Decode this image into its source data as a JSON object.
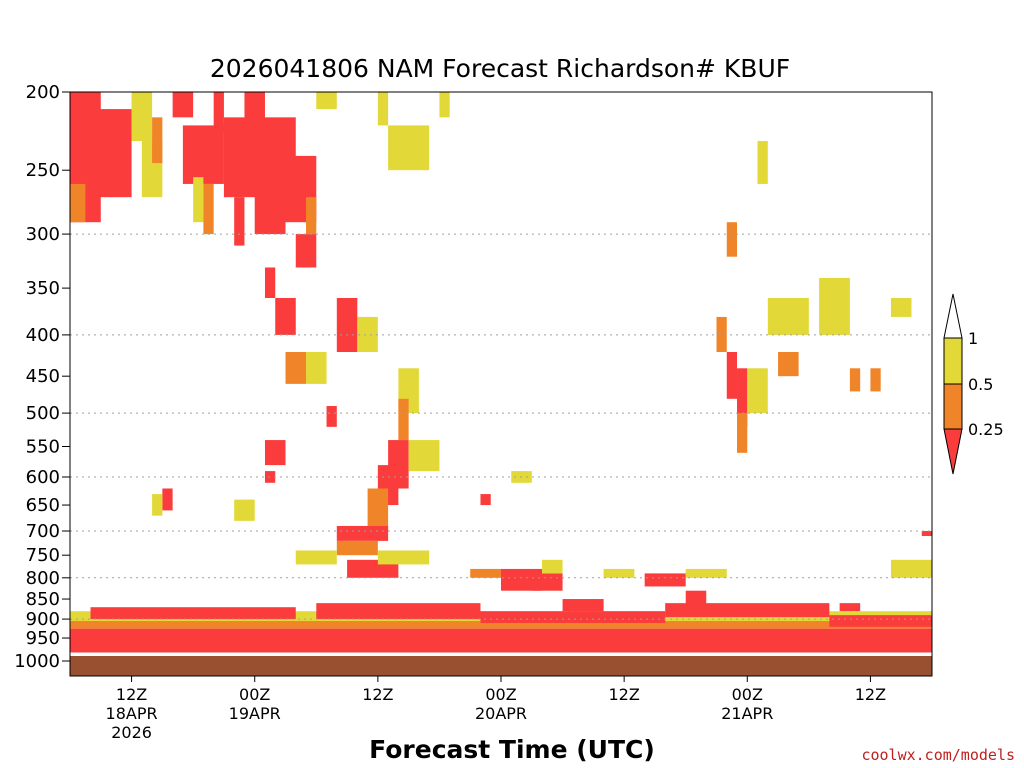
{
  "chart_data": {
    "type": "heatmap",
    "title": "2026041806 NAM Forecast Richardson# KBUF",
    "xlabel": "Forecast Time (UTC)",
    "ylabel": "",
    "credit": "coolwx.com/models",
    "y_axis": {
      "scale": "pressure-log",
      "range": [
        1000,
        200
      ],
      "ticks": [
        200,
        250,
        300,
        350,
        400,
        450,
        500,
        550,
        600,
        650,
        700,
        750,
        800,
        850,
        900,
        950,
        1000
      ],
      "gridlines": [
        300,
        400,
        500,
        600,
        700,
        800,
        900
      ]
    },
    "x_axis": {
      "range_hours": [
        0,
        84
      ],
      "ticks": [
        {
          "hour": 6,
          "lines": [
            "12Z",
            "18APR",
            "2026"
          ]
        },
        {
          "hour": 18,
          "lines": [
            "00Z",
            "19APR"
          ]
        },
        {
          "hour": 30,
          "lines": [
            "12Z"
          ]
        },
        {
          "hour": 42,
          "lines": [
            "00Z",
            "20APR"
          ]
        },
        {
          "hour": 54,
          "lines": [
            "12Z"
          ]
        },
        {
          "hour": 66,
          "lines": [
            "00Z",
            "21APR"
          ]
        },
        {
          "hour": 78,
          "lines": [
            "12Z"
          ]
        }
      ]
    },
    "legend": {
      "placement": "right",
      "labels": [
        "1",
        "0.5",
        "0.25"
      ],
      "bins": [
        {
          "range": "0.5-1",
          "color": "#e2d838"
        },
        {
          "range": "0.25-0.5",
          "color": "#f08428"
        },
        {
          "range": "<0.25",
          "color": "#fa3c3c"
        }
      ]
    },
    "colors": {
      "low": "#fa3c3c",
      "mid": "#f08428",
      "high": "#e2d838",
      "ground": "#985030",
      "grid": "#a0a0a0"
    },
    "cells": [
      {
        "t": [
          0,
          3
        ],
        "p": [
          200,
          290
        ],
        "c": "low"
      },
      {
        "t": [
          2,
          6
        ],
        "p": [
          210,
          270
        ],
        "c": "low"
      },
      {
        "t": [
          0,
          1.5
        ],
        "p": [
          260,
          290
        ],
        "c": "mid"
      },
      {
        "t": [
          6,
          8
        ],
        "p": [
          200,
          230
        ],
        "c": "high"
      },
      {
        "t": [
          7,
          9
        ],
        "p": [
          230,
          270
        ],
        "c": "high"
      },
      {
        "t": [
          8,
          9
        ],
        "p": [
          215,
          245
        ],
        "c": "mid"
      },
      {
        "t": [
          10,
          12
        ],
        "p": [
          200,
          215
        ],
        "c": "low"
      },
      {
        "t": [
          11,
          15
        ],
        "p": [
          220,
          260
        ],
        "c": "low"
      },
      {
        "t": [
          12,
          13
        ],
        "p": [
          255,
          290
        ],
        "c": "high"
      },
      {
        "t": [
          13,
          14
        ],
        "p": [
          260,
          300
        ],
        "c": "mid"
      },
      {
        "t": [
          14,
          15
        ],
        "p": [
          200,
          225
        ],
        "c": "low"
      },
      {
        "t": [
          15,
          22
        ],
        "p": [
          215,
          270
        ],
        "c": "low"
      },
      {
        "t": [
          16,
          17
        ],
        "p": [
          270,
          310
        ],
        "c": "low"
      },
      {
        "t": [
          17,
          19
        ],
        "p": [
          200,
          235
        ],
        "c": "low"
      },
      {
        "t": [
          18,
          21
        ],
        "p": [
          230,
          300
        ],
        "c": "low"
      },
      {
        "t": [
          21,
          24
        ],
        "p": [
          240,
          290
        ],
        "c": "low"
      },
      {
        "t": [
          22,
          24
        ],
        "p": [
          300,
          330
        ],
        "c": "low"
      },
      {
        "t": [
          19,
          20
        ],
        "p": [
          330,
          360
        ],
        "c": "low"
      },
      {
        "t": [
          20,
          22
        ],
        "p": [
          360,
          400
        ],
        "c": "low"
      },
      {
        "t": [
          23,
          24
        ],
        "p": [
          270,
          300
        ],
        "c": "mid"
      },
      {
        "t": [
          24,
          26
        ],
        "p": [
          200,
          210
        ],
        "c": "high"
      },
      {
        "t": [
          30,
          31
        ],
        "p": [
          200,
          220
        ],
        "c": "high"
      },
      {
        "t": [
          31,
          35
        ],
        "p": [
          220,
          250
        ],
        "c": "high"
      },
      {
        "t": [
          36,
          37
        ],
        "p": [
          200,
          215
        ],
        "c": "high"
      },
      {
        "t": [
          26,
          28
        ],
        "p": [
          360,
          420
        ],
        "c": "low"
      },
      {
        "t": [
          28,
          30
        ],
        "p": [
          380,
          420
        ],
        "c": "high"
      },
      {
        "t": [
          21,
          23
        ],
        "p": [
          420,
          460
        ],
        "c": "mid"
      },
      {
        "t": [
          23,
          25
        ],
        "p": [
          420,
          460
        ],
        "c": "high"
      },
      {
        "t": [
          25,
          26
        ],
        "p": [
          490,
          520
        ],
        "c": "low"
      },
      {
        "t": [
          19,
          21
        ],
        "p": [
          540,
          580
        ],
        "c": "low"
      },
      {
        "t": [
          19,
          20
        ],
        "p": [
          590,
          610
        ],
        "c": "low"
      },
      {
        "t": [
          32,
          34
        ],
        "p": [
          440,
          500
        ],
        "c": "high"
      },
      {
        "t": [
          32,
          33
        ],
        "p": [
          480,
          540
        ],
        "c": "mid"
      },
      {
        "t": [
          31,
          33
        ],
        "p": [
          540,
          620
        ],
        "c": "low"
      },
      {
        "t": [
          30,
          32
        ],
        "p": [
          580,
          650
        ],
        "c": "low"
      },
      {
        "t": [
          33,
          36
        ],
        "p": [
          540,
          590
        ],
        "c": "high"
      },
      {
        "t": [
          29,
          31
        ],
        "p": [
          620,
          700
        ],
        "c": "mid"
      },
      {
        "t": [
          26,
          31
        ],
        "p": [
          690,
          720
        ],
        "c": "low"
      },
      {
        "t": [
          26,
          30
        ],
        "p": [
          720,
          750
        ],
        "c": "mid"
      },
      {
        "t": [
          22,
          26
        ],
        "p": [
          740,
          770
        ],
        "c": "high"
      },
      {
        "t": [
          27,
          32
        ],
        "p": [
          760,
          800
        ],
        "c": "low"
      },
      {
        "t": [
          30,
          35
        ],
        "p": [
          740,
          770
        ],
        "c": "high"
      },
      {
        "t": [
          9,
          10
        ],
        "p": [
          620,
          660
        ],
        "c": "low"
      },
      {
        "t": [
          8,
          9
        ],
        "p": [
          630,
          670
        ],
        "c": "high"
      },
      {
        "t": [
          16,
          18
        ],
        "p": [
          640,
          680
        ],
        "c": "high"
      },
      {
        "t": [
          40,
          41
        ],
        "p": [
          630,
          650
        ],
        "c": "low"
      },
      {
        "t": [
          43,
          45
        ],
        "p": [
          590,
          610
        ],
        "c": "high"
      },
      {
        "t": [
          39,
          42
        ],
        "p": [
          780,
          800
        ],
        "c": "mid"
      },
      {
        "t": [
          42,
          46
        ],
        "p": [
          780,
          830
        ],
        "c": "low"
      },
      {
        "t": [
          45,
          48
        ],
        "p": [
          790,
          830
        ],
        "c": "low"
      },
      {
        "t": [
          46,
          48
        ],
        "p": [
          760,
          790
        ],
        "c": "high"
      },
      {
        "t": [
          52,
          55
        ],
        "p": [
          780,
          800
        ],
        "c": "high"
      },
      {
        "t": [
          56,
          60
        ],
        "p": [
          790,
          820
        ],
        "c": "low"
      },
      {
        "t": [
          60,
          64
        ],
        "p": [
          780,
          800
        ],
        "c": "high"
      },
      {
        "t": [
          48,
          52
        ],
        "p": [
          850,
          890
        ],
        "c": "low"
      },
      {
        "t": [
          60,
          62
        ],
        "p": [
          830,
          870
        ],
        "c": "low"
      },
      {
        "t": [
          64,
          65
        ],
        "p": [
          290,
          320
        ],
        "c": "mid"
      },
      {
        "t": [
          63,
          64
        ],
        "p": [
          380,
          420
        ],
        "c": "mid"
      },
      {
        "t": [
          64,
          65
        ],
        "p": [
          420,
          480
        ],
        "c": "low"
      },
      {
        "t": [
          65,
          66
        ],
        "p": [
          440,
          520
        ],
        "c": "low"
      },
      {
        "t": [
          65,
          66
        ],
        "p": [
          500,
          560
        ],
        "c": "mid"
      },
      {
        "t": [
          66,
          68
        ],
        "p": [
          440,
          500
        ],
        "c": "high"
      },
      {
        "t": [
          67,
          68
        ],
        "p": [
          230,
          260
        ],
        "c": "high"
      },
      {
        "t": [
          69,
          71
        ],
        "p": [
          420,
          450
        ],
        "c": "mid"
      },
      {
        "t": [
          68,
          72
        ],
        "p": [
          360,
          400
        ],
        "c": "high"
      },
      {
        "t": [
          73,
          76
        ],
        "p": [
          340,
          400
        ],
        "c": "high"
      },
      {
        "t": [
          76,
          77
        ],
        "p": [
          440,
          470
        ],
        "c": "mid"
      },
      {
        "t": [
          78,
          79
        ],
        "p": [
          440,
          470
        ],
        "c": "mid"
      },
      {
        "t": [
          80,
          82
        ],
        "p": [
          360,
          380
        ],
        "c": "high"
      },
      {
        "t": [
          80,
          84
        ],
        "p": [
          760,
          800
        ],
        "c": "high"
      },
      {
        "t": [
          75,
          77
        ],
        "p": [
          860,
          880
        ],
        "c": "low"
      },
      {
        "t": [
          83,
          84
        ],
        "p": [
          700,
          710
        ],
        "c": "low"
      },
      {
        "t": [
          0,
          84
        ],
        "p": [
          880,
          905
        ],
        "c": "high"
      },
      {
        "t": [
          0,
          84
        ],
        "p": [
          905,
          925
        ],
        "c": "mid"
      },
      {
        "t": [
          2,
          22
        ],
        "p": [
          870,
          900
        ],
        "c": "low"
      },
      {
        "t": [
          24,
          40
        ],
        "p": [
          860,
          900
        ],
        "c": "low"
      },
      {
        "t": [
          40,
          58
        ],
        "p": [
          880,
          910
        ],
        "c": "low"
      },
      {
        "t": [
          58,
          74
        ],
        "p": [
          860,
          895
        ],
        "c": "low"
      },
      {
        "t": [
          74,
          84
        ],
        "p": [
          890,
          920
        ],
        "c": "low"
      },
      {
        "t": [
          0,
          84
        ],
        "p": [
          925,
          990
        ],
        "c": "low"
      }
    ]
  }
}
